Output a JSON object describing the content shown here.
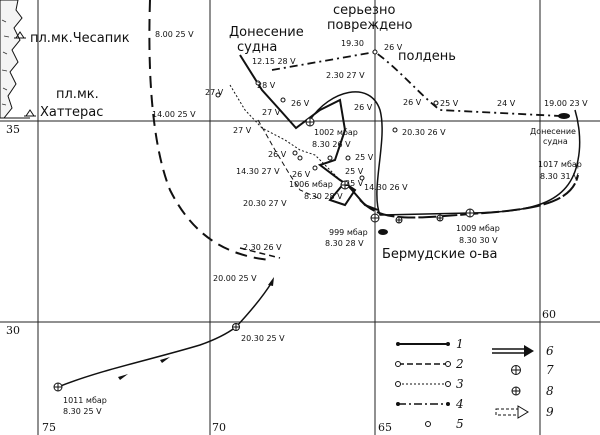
{
  "places": {
    "chesapeake": "пл.мк.Чесапик",
    "hatteras_1": "пл.мк.",
    "hatteras_2": "Хаттерас",
    "bermuda": "Бермудские о-ва",
    "ship_report_1": "Донесение",
    "ship_report_2": "судна",
    "damaged_1": "серьезно",
    "damaged_2": "повреждено",
    "noon": "полдень",
    "ship_report_small_1": "Донесение",
    "ship_report_small_2": "судна"
  },
  "grid": {
    "lat_35": "35",
    "lat_30": "30",
    "lon_75": "75",
    "lon_70": "70",
    "lon_65": "65",
    "lon_60": "60"
  },
  "track_labels": {
    "t1": "8.00  25 V",
    "t2": "14.00  25 V",
    "t3": "12.15  28 V",
    "t4": "19.30",
    "t5": "26 V",
    "t6": "2.30  27 V",
    "t7": "28 V",
    "t8": "27 V",
    "t9": "26 V",
    "t10": "27 V",
    "t11": "27 V",
    "t12": "26 V",
    "t13": "25 V",
    "t14": "24 V",
    "t15": "19.00  23 V",
    "t16": "26 V",
    "t17": "1002 мбар",
    "t18": "8.30  26 V",
    "t19": "20.30  26 V",
    "t20": "26 V",
    "t21": "25 V",
    "t22": "14.30  27 V",
    "t23": "25 V",
    "t24": "1006 мбар",
    "t25": "8.30  28 V",
    "t26": "26 V",
    "t27": "25 V",
    "t28": "14.30  26 V",
    "t29": "20.30  27 V",
    "t30": "1017 мбар",
    "t31": "8.30  31 V",
    "t32": "999 мбар",
    "t33": "8.30  28 V",
    "t34": "1009 мбар",
    "t35": "8.30  30 V",
    "t36": "2.30  26 V",
    "t37": "20.00  25 V",
    "t38": "20.30  25 V",
    "t39": "1011 мбар",
    "t40": "8.30  25 V"
  },
  "legend": {
    "items": [
      {
        "num": "1",
        "symbol": "solid-line-dots"
      },
      {
        "num": "2",
        "symbol": "dash-line-open-circles"
      },
      {
        "num": "3",
        "symbol": "dotted-line-open-circles"
      },
      {
        "num": "4",
        "symbol": "dash-dot-line"
      },
      {
        "num": "5",
        "symbol": "small-open-circle"
      },
      {
        "num": "6",
        "symbol": "double-arrow"
      },
      {
        "num": "7",
        "symbol": "crossed-circle"
      },
      {
        "num": "8",
        "symbol": "crossed-circle-small"
      },
      {
        "num": "9",
        "symbol": "open-arrow-dashed"
      }
    ]
  }
}
